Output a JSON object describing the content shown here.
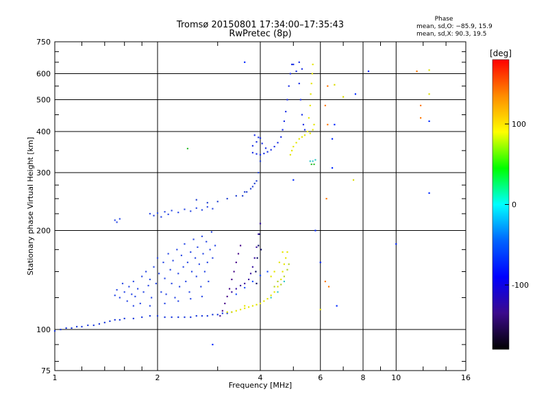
{
  "header": {
    "title_line1": "Tromsø 20150801 17:34:00–17:35:43",
    "title_line2": "RwPretec (8p)",
    "phase_title": "Phase",
    "phase_o": "mean, sd,O: −85.9, 15.9",
    "phase_x": "mean, sd,X:  90.3, 19.5"
  },
  "chart_data": {
    "type": "scatter",
    "xlabel": "Frequency [MHz]",
    "ylabel": "Stationary phase Virtual Height [km]",
    "xscale": "log",
    "yscale": "log",
    "xlim": [
      1,
      16
    ],
    "ylim": [
      75,
      750
    ],
    "xticks": [
      1,
      2,
      4,
      6,
      8,
      10,
      16
    ],
    "yticks": [
      75,
      100,
      200,
      300,
      400,
      500,
      600,
      750
    ],
    "grid": true,
    "colorbar": {
      "label": "[deg]",
      "range": [
        -180,
        180
      ],
      "ticks": [
        -100,
        0,
        100
      ],
      "colormap": "rainbow",
      "colors": [
        "#000000",
        "#3c0a8c",
        "#0000ff",
        "#0064ff",
        "#00ffff",
        "#00ff00",
        "#ffff00",
        "#ff8c00",
        "#ff0000"
      ]
    },
    "series": [
      {
        "color": "#1e3cdc",
        "points": [
          [
            1.0,
            99
          ],
          [
            1.04,
            100
          ],
          [
            1.08,
            101
          ],
          [
            1.12,
            101
          ],
          [
            1.16,
            102
          ],
          [
            1.2,
            102
          ],
          [
            1.25,
            103
          ],
          [
            1.3,
            103
          ],
          [
            1.35,
            104
          ],
          [
            1.4,
            105
          ],
          [
            1.45,
            106
          ],
          [
            1.5,
            107
          ],
          [
            1.55,
            107
          ],
          [
            1.6,
            108
          ],
          [
            1.7,
            108
          ],
          [
            1.8,
            109
          ],
          [
            1.9,
            110
          ],
          [
            2.0,
            110
          ],
          [
            2.1,
            109
          ],
          [
            2.2,
            109
          ],
          [
            2.3,
            109
          ],
          [
            2.4,
            109
          ],
          [
            2.5,
            109
          ],
          [
            2.6,
            110
          ],
          [
            2.7,
            110
          ],
          [
            2.8,
            110
          ],
          [
            2.9,
            111
          ],
          [
            3.0,
            111
          ],
          [
            3.1,
            112
          ],
          [
            3.2,
            112
          ],
          [
            3.3,
            113
          ]
        ]
      },
      {
        "color": "#3250e6",
        "points": [
          [
            1.5,
            127
          ],
          [
            1.52,
            132
          ],
          [
            1.55,
            125
          ],
          [
            1.58,
            138
          ],
          [
            1.6,
            130
          ],
          [
            1.63,
            122
          ],
          [
            1.65,
            135
          ],
          [
            1.68,
            128
          ],
          [
            1.7,
            140
          ],
          [
            1.72,
            126
          ],
          [
            1.75,
            133
          ],
          [
            1.78,
            120
          ],
          [
            1.8,
            145
          ],
          [
            1.82,
            130
          ],
          [
            1.85,
            150
          ],
          [
            1.88,
            136
          ],
          [
            1.9,
            142
          ],
          [
            1.92,
            125
          ],
          [
            1.95,
            155
          ],
          [
            1.98,
            138
          ],
          [
            2.0,
            165
          ],
          [
            2.02,
            148
          ],
          [
            2.05,
            130
          ],
          [
            2.08,
            160
          ],
          [
            2.1,
            143
          ],
          [
            2.12,
            128
          ],
          [
            2.15,
            170
          ],
          [
            2.18,
            152
          ],
          [
            2.2,
            138
          ],
          [
            2.22,
            162
          ],
          [
            2.25,
            125
          ],
          [
            2.28,
            175
          ],
          [
            2.3,
            148
          ],
          [
            2.32,
            135
          ],
          [
            2.35,
            168
          ],
          [
            2.38,
            155
          ],
          [
            2.4,
            182
          ],
          [
            2.42,
            140
          ],
          [
            2.45,
            160
          ],
          [
            2.48,
            130
          ],
          [
            2.5,
            172
          ],
          [
            2.52,
            150
          ],
          [
            2.55,
            188
          ],
          [
            2.58,
            165
          ],
          [
            2.6,
            145
          ],
          [
            2.62,
            178
          ],
          [
            2.65,
            158
          ],
          [
            2.68,
            135
          ],
          [
            2.7,
            192
          ],
          [
            2.72,
            170
          ],
          [
            2.75,
            150
          ],
          [
            2.78,
            185
          ],
          [
            2.8,
            160
          ],
          [
            2.82,
            140
          ],
          [
            2.85,
            175
          ],
          [
            2.88,
            198
          ],
          [
            2.9,
            165
          ],
          [
            2.95,
            180
          ],
          [
            1.7,
            118
          ],
          [
            1.9,
            118
          ],
          [
            2.1,
            120
          ],
          [
            2.3,
            122
          ],
          [
            2.5,
            124
          ],
          [
            2.7,
            126
          ],
          [
            1.5,
            215
          ],
          [
            1.52,
            212
          ],
          [
            1.55,
            217
          ],
          [
            1.9,
            225
          ],
          [
            1.95,
            222
          ],
          [
            2.0,
            226
          ],
          [
            2.05,
            220
          ],
          [
            2.1,
            228
          ],
          [
            2.15,
            224
          ],
          [
            2.2,
            230
          ],
          [
            2.3,
            227
          ],
          [
            2.4,
            232
          ],
          [
            2.5,
            229
          ],
          [
            2.6,
            234
          ],
          [
            2.7,
            231
          ],
          [
            2.8,
            236
          ],
          [
            2.9,
            233
          ]
        ]
      },
      {
        "color": "#2846d2",
        "points": [
          [
            2.6,
            248
          ],
          [
            2.8,
            243
          ],
          [
            3.0,
            245
          ],
          [
            3.2,
            250
          ],
          [
            3.4,
            255
          ],
          [
            3.6,
            262
          ],
          [
            3.8,
            272
          ],
          [
            3.9,
            283
          ],
          [
            3.95,
            300
          ],
          [
            4.0,
            325
          ],
          [
            3.55,
            255
          ],
          [
            3.65,
            262
          ],
          [
            3.75,
            268
          ],
          [
            3.85,
            278
          ]
        ]
      },
      {
        "color": "#3c14a0",
        "points": [
          [
            3.3,
            130
          ],
          [
            3.4,
            133
          ],
          [
            3.5,
            136
          ],
          [
            3.6,
            138
          ],
          [
            3.7,
            142
          ],
          [
            3.75,
            148
          ],
          [
            3.8,
            155
          ],
          [
            3.85,
            165
          ],
          [
            3.9,
            178
          ],
          [
            3.95,
            195
          ],
          [
            4.0,
            210
          ]
        ]
      },
      {
        "color": "#4b0f8c",
        "points": [
          [
            3.05,
            110
          ],
          [
            3.1,
            114
          ],
          [
            3.15,
            120
          ],
          [
            3.2,
            126
          ],
          [
            3.25,
            133
          ],
          [
            3.3,
            142
          ],
          [
            3.35,
            150
          ],
          [
            3.4,
            160
          ],
          [
            3.45,
            170
          ],
          [
            3.5,
            180
          ]
        ]
      },
      {
        "color": "#1e32e6",
        "points": [
          [
            3.8,
            345
          ],
          [
            3.9,
            342
          ],
          [
            4.0,
            340
          ],
          [
            4.1,
            343
          ],
          [
            4.2,
            347
          ],
          [
            4.3,
            352
          ],
          [
            4.4,
            360
          ],
          [
            4.5,
            370
          ],
          [
            4.6,
            385
          ],
          [
            4.65,
            405
          ],
          [
            4.7,
            430
          ],
          [
            4.75,
            460
          ],
          [
            4.8,
            500
          ],
          [
            4.85,
            550
          ],
          [
            4.9,
            600
          ],
          [
            4.95,
            640
          ],
          [
            3.8,
            362
          ],
          [
            3.9,
            372
          ],
          [
            4.0,
            382
          ],
          [
            3.85,
            390
          ],
          [
            3.95,
            384
          ],
          [
            4.05,
            368
          ],
          [
            4.15,
            356
          ],
          [
            5.0,
            640
          ],
          [
            5.1,
            610
          ],
          [
            5.2,
            560
          ],
          [
            5.25,
            500
          ],
          [
            5.3,
            450
          ],
          [
            5.35,
            420
          ],
          [
            5.4,
            405
          ],
          [
            5.3,
            620
          ],
          [
            5.2,
            650
          ]
        ]
      },
      {
        "color": "#0a0a64",
        "points": [
          [
            3.88,
            150
          ],
          [
            3.92,
            165
          ],
          [
            3.95,
            180
          ],
          [
            3.98,
            195
          ],
          [
            4.02,
            175
          ],
          [
            3.9,
            138
          ]
        ]
      },
      {
        "color": "#1e50ff",
        "points": [
          [
            3.4,
            128
          ],
          [
            3.6,
            134
          ],
          [
            3.8,
            140
          ],
          [
            4.0,
            146
          ],
          [
            4.2,
            150
          ]
        ]
      },
      {
        "color": "#e6e600",
        "points": [
          [
            3.2,
            113
          ],
          [
            3.3,
            113
          ],
          [
            3.4,
            114
          ],
          [
            3.5,
            115
          ],
          [
            3.6,
            116
          ],
          [
            3.7,
            117
          ],
          [
            3.8,
            118
          ],
          [
            3.9,
            119
          ],
          [
            4.0,
            120
          ],
          [
            4.1,
            122
          ],
          [
            4.2,
            124
          ],
          [
            4.3,
            127
          ],
          [
            4.4,
            130
          ],
          [
            4.5,
            135
          ],
          [
            4.6,
            142
          ],
          [
            4.65,
            150
          ],
          [
            4.7,
            158
          ],
          [
            4.75,
            165
          ],
          [
            4.8,
            172
          ],
          [
            4.3,
            145
          ],
          [
            4.4,
            150
          ],
          [
            4.55,
            160
          ],
          [
            4.65,
            172
          ],
          [
            3.6,
            118
          ],
          [
            4.9,
            340
          ],
          [
            4.95,
            350
          ],
          [
            5.0,
            360
          ],
          [
            5.1,
            370
          ],
          [
            5.2,
            380
          ],
          [
            5.3,
            385
          ],
          [
            5.4,
            390
          ],
          [
            5.5,
            400
          ],
          [
            5.55,
            440
          ],
          [
            5.6,
            480
          ],
          [
            5.62,
            520
          ],
          [
            5.65,
            560
          ],
          [
            5.68,
            600
          ],
          [
            5.7,
            640
          ],
          [
            5.6,
            395
          ],
          [
            5.7,
            405
          ],
          [
            5.75,
            420
          ]
        ]
      },
      {
        "color": "#b4d228",
        "points": [
          [
            4.4,
            135
          ],
          [
            4.5,
            140
          ],
          [
            4.6,
            137
          ],
          [
            4.7,
            145
          ],
          [
            4.8,
            152
          ],
          [
            4.85,
            158
          ]
        ]
      },
      {
        "color": "#32c8c8",
        "points": [
          [
            4.3,
            125
          ],
          [
            4.5,
            130
          ],
          [
            4.7,
            140
          ],
          [
            5.6,
            325
          ],
          [
            5.7,
            325
          ],
          [
            5.8,
            328
          ]
        ]
      },
      {
        "color": "#32be32",
        "points": [
          [
            2.45,
            355
          ],
          [
            5.65,
            318
          ],
          [
            5.75,
            318
          ]
        ]
      },
      {
        "color": "#ff7800",
        "points": [
          [
            6.2,
            480
          ],
          [
            6.3,
            550
          ],
          [
            6.3,
            420
          ],
          [
            6.25,
            250
          ],
          [
            6.2,
            140
          ],
          [
            11.5,
            610
          ],
          [
            11.8,
            480
          ],
          [
            11.8,
            440
          ],
          [
            6.35,
            135
          ]
        ]
      },
      {
        "color": "#0028ff",
        "points": [
          [
            3.6,
            650
          ],
          [
            5.0,
            285
          ],
          [
            5.8,
            200
          ],
          [
            6.0,
            160
          ],
          [
            6.6,
            420
          ],
          [
            6.5,
            310
          ],
          [
            7.6,
            520
          ],
          [
            8.3,
            610
          ],
          [
            10.0,
            182
          ],
          [
            12.5,
            260
          ],
          [
            6.7,
            118
          ],
          [
            2.9,
            90
          ],
          [
            6.5,
            380
          ],
          [
            12.5,
            430
          ]
        ]
      },
      {
        "color": "#dcdc00",
        "points": [
          [
            6.6,
            555
          ],
          [
            7.0,
            510
          ],
          [
            12.5,
            615
          ],
          [
            12.5,
            520
          ],
          [
            6.0,
            115
          ],
          [
            7.5,
            285
          ]
        ]
      }
    ]
  }
}
